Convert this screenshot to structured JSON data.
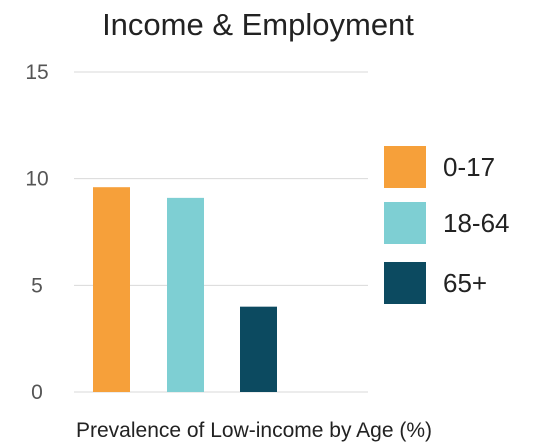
{
  "chart_data": {
    "type": "bar",
    "title": "Income & Employment",
    "xlabel": "Prevalence of Low-income by Age (%)",
    "ylabel": "",
    "ylim": [
      0,
      15
    ],
    "yticks": [
      0,
      5,
      10,
      15
    ],
    "grid": true,
    "legend_position": "right",
    "categories": [
      "0-17",
      "18-64",
      "65+"
    ],
    "values": [
      9.6,
      9.1,
      4.0
    ],
    "series": [
      {
        "name": "0-17",
        "value": 9.6,
        "color": "#F6A03A"
      },
      {
        "name": "18-64",
        "value": 9.1,
        "color": "#7ECFD3"
      },
      {
        "name": "65+",
        "value": 4.0,
        "color": "#0C4A60"
      }
    ]
  }
}
